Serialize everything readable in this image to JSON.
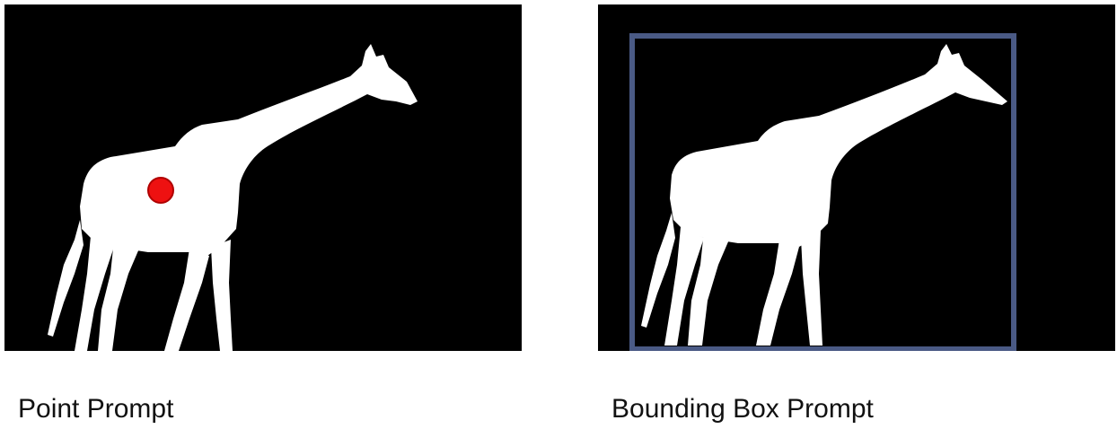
{
  "panels": [
    {
      "caption": "Point Prompt",
      "prompt_type": "point",
      "marker_color": "#ee1111",
      "mask_color": "#ffffff",
      "background_color": "#000000"
    },
    {
      "caption": "Bounding Box Prompt",
      "prompt_type": "bounding-box",
      "box_color": "#4a5a85",
      "mask_color": "#ffffff",
      "background_color": "#000000"
    }
  ]
}
